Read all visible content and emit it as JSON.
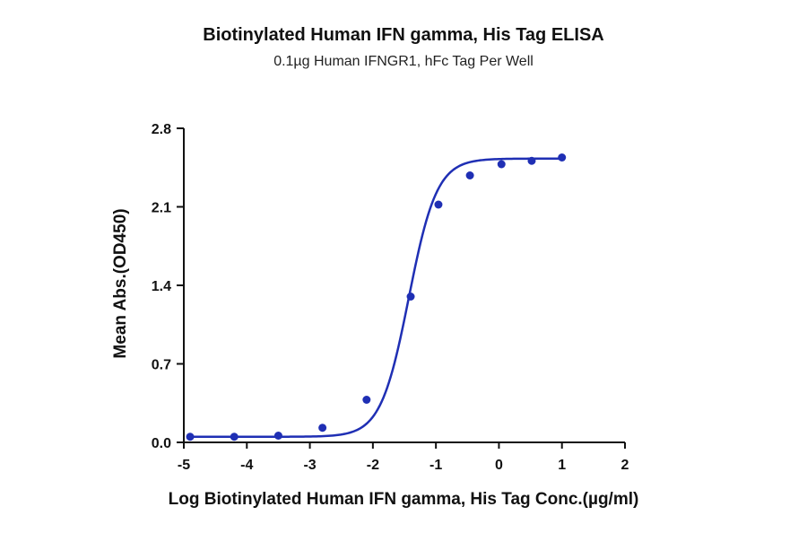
{
  "chart_data": {
    "type": "scatter",
    "title": "Biotinylated Human IFN gamma, His Tag ELISA",
    "subtitle": "0.1µg Human IFNGR1, hFc Tag Per Well",
    "xlabel": "Log Biotinylated Human IFN gamma, His Tag Conc.(µg/ml)",
    "ylabel": "Mean Abs.(OD450)",
    "xlim": [
      -5,
      2
    ],
    "ylim": [
      0,
      2.8
    ],
    "xticks": [
      "-5",
      "-4",
      "-3",
      "-2",
      "-1",
      "0",
      "1",
      "2"
    ],
    "yticks": [
      "0.0",
      "0.7",
      "1.4",
      "2.1",
      "2.8"
    ],
    "grid": false,
    "colors": {
      "series": "#1f2fb4"
    },
    "series": [
      {
        "x": [
          -4.9,
          -4.2,
          -3.5,
          -2.8,
          -2.1,
          -1.4,
          -0.96,
          -0.46,
          0.04,
          0.52,
          1.0
        ],
        "y": [
          0.05,
          0.05,
          0.06,
          0.13,
          0.38,
          1.3,
          2.12,
          2.38,
          2.48,
          2.51,
          2.54
        ]
      }
    ],
    "fit_curve": {
      "model": "4PL",
      "bottom": 0.05,
      "top": 2.53,
      "log_ec50": -1.43,
      "hill_slope": 1.95
    }
  }
}
